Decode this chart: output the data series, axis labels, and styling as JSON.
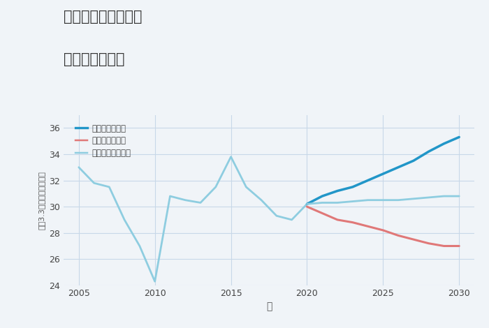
{
  "title_line1": "兵庫県姫路市北原の",
  "title_line2": "土地の価格推移",
  "xlabel": "年",
  "ylabel": "坪（3.3㎡）単価（万円）",
  "ylim": [
    24,
    37
  ],
  "yticks": [
    24,
    26,
    28,
    30,
    32,
    34,
    36
  ],
  "xlim": [
    2004,
    2031
  ],
  "xticks": [
    2005,
    2010,
    2015,
    2020,
    2025,
    2030
  ],
  "bg_color": "#f0f4f8",
  "grid_color": "#c8d8e8",
  "historical": {
    "years": [
      2005,
      2006,
      2007,
      2008,
      2009,
      2010,
      2011,
      2012,
      2013,
      2014,
      2015,
      2016,
      2017,
      2018,
      2019,
      2020
    ],
    "values": [
      33.0,
      31.8,
      31.5,
      29.0,
      27.0,
      24.3,
      30.8,
      30.5,
      30.3,
      31.5,
      33.8,
      31.5,
      30.5,
      29.3,
      29.0,
      30.2
    ],
    "color": "#8ecde0",
    "linewidth": 2.0
  },
  "good": {
    "years": [
      2020,
      2021,
      2022,
      2023,
      2024,
      2025,
      2026,
      2027,
      2028,
      2029,
      2030
    ],
    "values": [
      30.2,
      30.8,
      31.2,
      31.5,
      32.0,
      32.5,
      33.0,
      33.5,
      34.2,
      34.8,
      35.3
    ],
    "color": "#2196c8",
    "linewidth": 2.5,
    "label": "グッドシナリオ"
  },
  "bad": {
    "years": [
      2020,
      2021,
      2022,
      2023,
      2024,
      2025,
      2026,
      2027,
      2028,
      2029,
      2030
    ],
    "values": [
      30.0,
      29.5,
      29.0,
      28.8,
      28.5,
      28.2,
      27.8,
      27.5,
      27.2,
      27.0,
      27.0
    ],
    "color": "#e07878",
    "linewidth": 2.2,
    "label": "バッドシナリオ"
  },
  "normal": {
    "years": [
      2020,
      2021,
      2022,
      2023,
      2024,
      2025,
      2026,
      2027,
      2028,
      2029,
      2030
    ],
    "values": [
      30.2,
      30.3,
      30.3,
      30.4,
      30.5,
      30.5,
      30.5,
      30.6,
      30.7,
      30.8,
      30.8
    ],
    "color": "#8ecde0",
    "linewidth": 2.0,
    "label": "ノーマルシナリオ"
  }
}
